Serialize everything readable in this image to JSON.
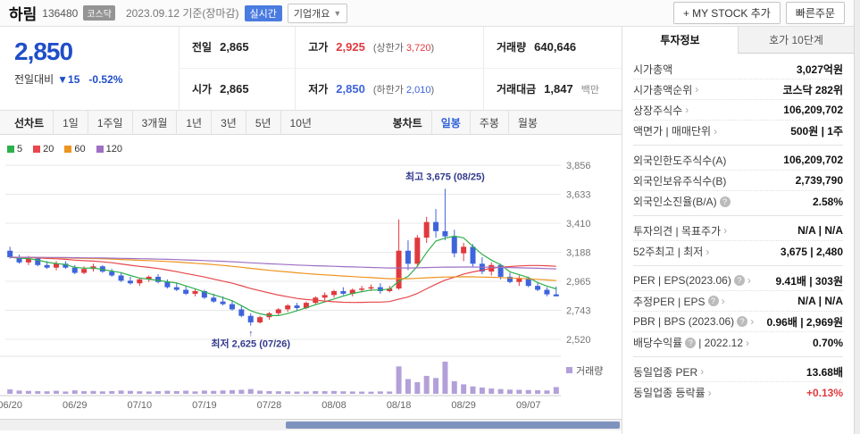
{
  "header": {
    "stock_name": "하림",
    "stock_code": "136480",
    "market_badge": "코스닥",
    "date_info": "2023.09.12 기준(장마감)",
    "realtime_badge": "실시간",
    "overview_dropdown": "기업개요",
    "mystock_button": "+ MY STOCK 추가",
    "quick_order_button": "빠른주문"
  },
  "price": {
    "current": "2,850",
    "change_label": "전일대비",
    "change_arrow": "▼15",
    "change_percent": "-0.52%",
    "cells": [
      {
        "label": "전일",
        "value": "2,865"
      },
      {
        "label": "고가",
        "value": "2,925",
        "value_class": "red",
        "sub_pre": "(상한가 ",
        "sub_num": "3,720",
        "sub_post": ")",
        "sub_class": "red"
      },
      {
        "label": "거래량",
        "value": "640,646"
      },
      {
        "label": "시가",
        "value": "2,865"
      },
      {
        "label": "저가",
        "value": "2,850",
        "value_class": "blue",
        "sub_pre": "(하한가 ",
        "sub_num": "2,010",
        "sub_post": ")",
        "sub_class": "blue"
      },
      {
        "label": "거래대금",
        "value": "1,847",
        "unit": "백만"
      }
    ]
  },
  "toolbar": {
    "line_group_label": "선차트",
    "period_tabs": [
      "1일",
      "1주일",
      "3개월",
      "1년",
      "3년",
      "5년",
      "10년"
    ],
    "candle_group_label": "봉차트",
    "candle_tabs": [
      "일봉",
      "주봉",
      "월봉"
    ],
    "active_tab": "일봉"
  },
  "chart_data": {
    "type": "candlestick",
    "title": "하림 일봉 차트",
    "ylim": [
      2520,
      3856
    ],
    "y_ticks": [
      3856,
      3633,
      3410,
      3188,
      2965,
      2743,
      2520
    ],
    "y_tick_labels": [
      "3,856",
      "3,633",
      "3,410",
      "3,188",
      "2,965",
      "2,743",
      "2,520"
    ],
    "x_ticks": [
      {
        "index": 0,
        "label": "06/20"
      },
      {
        "index": 7,
        "label": "06/29"
      },
      {
        "index": 14,
        "label": "07/10"
      },
      {
        "index": 21,
        "label": "07/19"
      },
      {
        "index": 28,
        "label": "07/28"
      },
      {
        "index": 35,
        "label": "08/08"
      },
      {
        "index": 42,
        "label": "08/18"
      },
      {
        "index": 49,
        "label": "08/29"
      },
      {
        "index": 56,
        "label": "09/07"
      }
    ],
    "dates": [
      "06/20",
      "06/21",
      "06/22",
      "06/23",
      "06/26",
      "06/27",
      "06/28",
      "06/29",
      "06/30",
      "07/03",
      "07/04",
      "07/05",
      "07/06",
      "07/07",
      "07/10",
      "07/11",
      "07/12",
      "07/13",
      "07/14",
      "07/17",
      "07/18",
      "07/19",
      "07/20",
      "07/21",
      "07/24",
      "07/25",
      "07/26",
      "07/27",
      "07/28",
      "07/31",
      "08/01",
      "08/02",
      "08/03",
      "08/04",
      "08/07",
      "08/08",
      "08/09",
      "08/10",
      "08/11",
      "08/14",
      "08/16",
      "08/17",
      "08/18",
      "08/21",
      "08/22",
      "08/23",
      "08/24",
      "08/25",
      "08/28",
      "08/29",
      "08/30",
      "08/31",
      "09/01",
      "09/04",
      "09/05",
      "09/06",
      "09/07",
      "09/08",
      "09/11",
      "09/12"
    ],
    "candles": [
      [
        3200,
        3230,
        3140,
        3150,
        420
      ],
      [
        3150,
        3170,
        3100,
        3110,
        310
      ],
      [
        3110,
        3160,
        3090,
        3140,
        280
      ],
      [
        3140,
        3150,
        3080,
        3090,
        260
      ],
      [
        3090,
        3120,
        3060,
        3070,
        240
      ],
      [
        3070,
        3120,
        3050,
        3100,
        290
      ],
      [
        3100,
        3120,
        3060,
        3070,
        220
      ],
      [
        3070,
        3090,
        3020,
        3030,
        330
      ],
      [
        3030,
        3080,
        3020,
        3060,
        250
      ],
      [
        3060,
        3100,
        3040,
        3080,
        270
      ],
      [
        3080,
        3090,
        3030,
        3040,
        230
      ],
      [
        3040,
        3060,
        3000,
        3010,
        260
      ],
      [
        3010,
        3030,
        2960,
        2970,
        310
      ],
      [
        2970,
        3000,
        2940,
        2950,
        280
      ],
      [
        2950,
        2990,
        2930,
        2980,
        240
      ],
      [
        2980,
        3010,
        2960,
        3000,
        220
      ],
      [
        3000,
        3020,
        2950,
        2960,
        250
      ],
      [
        2960,
        2980,
        2910,
        2920,
        290
      ],
      [
        2920,
        2950,
        2890,
        2900,
        260
      ],
      [
        2900,
        2930,
        2860,
        2870,
        300
      ],
      [
        2870,
        2910,
        2850,
        2890,
        230
      ],
      [
        2890,
        2900,
        2830,
        2840,
        310
      ],
      [
        2840,
        2870,
        2800,
        2810,
        280
      ],
      [
        2810,
        2850,
        2780,
        2790,
        320
      ],
      [
        2790,
        2820,
        2740,
        2750,
        350
      ],
      [
        2750,
        2780,
        2690,
        2700,
        380
      ],
      [
        2700,
        2720,
        2625,
        2650,
        450
      ],
      [
        2650,
        2700,
        2640,
        2690,
        300
      ],
      [
        2690,
        2730,
        2670,
        2720,
        260
      ],
      [
        2720,
        2760,
        2700,
        2750,
        240
      ],
      [
        2750,
        2790,
        2730,
        2780,
        230
      ],
      [
        2780,
        2800,
        2740,
        2760,
        210
      ],
      [
        2760,
        2810,
        2750,
        2800,
        220
      ],
      [
        2800,
        2850,
        2790,
        2840,
        260
      ],
      [
        2840,
        2880,
        2820,
        2860,
        250
      ],
      [
        2860,
        2900,
        2840,
        2890,
        270
      ],
      [
        2890,
        2920,
        2860,
        2870,
        240
      ],
      [
        2870,
        2910,
        2850,
        2900,
        220
      ],
      [
        2900,
        2930,
        2880,
        2910,
        210
      ],
      [
        2910,
        2940,
        2890,
        2920,
        200
      ],
      [
        2920,
        2950,
        2870,
        2890,
        230
      ],
      [
        2890,
        2930,
        2880,
        2910,
        220
      ],
      [
        2910,
        3440,
        2900,
        3200,
        2600
      ],
      [
        3200,
        3280,
        3050,
        3100,
        1400
      ],
      [
        3100,
        3320,
        3080,
        3300,
        1100
      ],
      [
        3300,
        3460,
        3260,
        3420,
        1700
      ],
      [
        3420,
        3520,
        3300,
        3350,
        1500
      ],
      [
        3350,
        3675,
        3280,
        3310,
        3050
      ],
      [
        3310,
        3360,
        3150,
        3180,
        1200
      ],
      [
        3180,
        3260,
        3120,
        3230,
        900
      ],
      [
        3230,
        3250,
        3080,
        3100,
        700
      ],
      [
        3100,
        3150,
        3020,
        3040,
        600
      ],
      [
        3040,
        3110,
        3010,
        3090,
        500
      ],
      [
        3090,
        3100,
        2980,
        3000,
        450
      ],
      [
        3000,
        3030,
        2950,
        2960,
        400
      ],
      [
        2960,
        3010,
        2930,
        2990,
        380
      ],
      [
        2990,
        3000,
        2920,
        2930,
        360
      ],
      [
        2930,
        2960,
        2890,
        2900,
        340
      ],
      [
        2900,
        2920,
        2850,
        2865,
        320
      ],
      [
        2865,
        2925,
        2850,
        2850,
        641
      ]
    ],
    "ma": [
      {
        "period": 5,
        "color": "#2db04b"
      },
      {
        "period": 20,
        "color": "#e8474c"
      },
      {
        "period": 60,
        "color": "#ee9420"
      },
      {
        "period": 120,
        "color": "#9e6fc4"
      }
    ],
    "ma_seed": 3150,
    "annotations": {
      "high": {
        "text": "최고 3,675 (08/25)",
        "index": 47,
        "price": 3675
      },
      "low": {
        "text": "최저 2,625 (07/26)",
        "index": 26,
        "price": 2625
      }
    },
    "volume_label": "거래량",
    "colors": {
      "up": "#e0393e",
      "down": "#3e64dc",
      "volume": "#b3a0d9",
      "grid": "#e9e9e9",
      "axis_text": "#777",
      "annotation": "#333a8c"
    }
  },
  "sidebar": {
    "tabs": [
      "투자정보",
      "호가 10단계"
    ],
    "active_tab": "투자정보",
    "groups": [
      [
        {
          "label": "시가총액",
          "value": "3,027억원"
        },
        {
          "label": "시가총액순위",
          "arrow": true,
          "value": "코스닥 282위"
        },
        {
          "label": "상장주식수",
          "arrow": true,
          "value": "106,209,702"
        },
        {
          "label": "액면가 | 매매단위",
          "arrow": true,
          "value": "500원 | 1주"
        }
      ],
      [
        {
          "label": "외국인한도주식수(A)",
          "value": "106,209,702"
        },
        {
          "label": "외국인보유주식수(B)",
          "value": "2,739,790"
        },
        {
          "label": "외국인소진율(B/A)",
          "q": true,
          "value": "2.58%"
        }
      ],
      [
        {
          "label": "투자의견 | 목표주가",
          "arrow": true,
          "value": "N/A | N/A"
        },
        {
          "label": "52주최고 | 최저",
          "arrow": true,
          "value": "3,675 | 2,480"
        }
      ],
      [
        {
          "label": "PER | EPS(2023.06)",
          "q": true,
          "arrow": true,
          "value": "9.41배 | 303원"
        },
        {
          "label": "추정PER | EPS",
          "q": true,
          "arrow": true,
          "value": "N/A | N/A"
        },
        {
          "label": "PBR | BPS (2023.06)",
          "q": true,
          "arrow": true,
          "value": "0.96배 | 2,969원"
        },
        {
          "label": "배당수익률",
          "q": true,
          "label2": "| 2022.12",
          "arrow": true,
          "value": "0.70%"
        }
      ],
      [
        {
          "label": "동일업종 PER",
          "arrow": true,
          "value": "13.68배"
        },
        {
          "label": "동일업종 등락률",
          "arrow": true,
          "value": "+0.13%",
          "color_class": "red"
        }
      ]
    ]
  }
}
